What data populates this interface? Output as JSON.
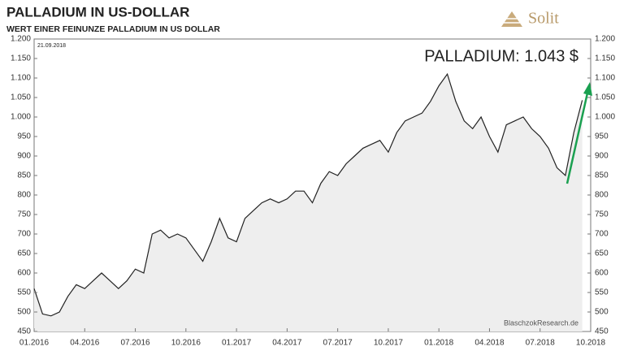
{
  "chart_data": {
    "type": "area",
    "title": "PALLADIUM  IN  US-DOLLAR",
    "subtitle": "WERT EINER FEINUNZE PALLADIUM IN US DOLLAR",
    "logo": "Solit",
    "date_note": "21.09.2018",
    "annotation": "PALLADIUM: 1.043 $",
    "source": "BlaschzokResearch.de",
    "color": "#222222",
    "fill": "#eeeeee",
    "categories": [
      "01.2016",
      null,
      null,
      null,
      null,
      null,
      "04.2016",
      null,
      null,
      null,
      null,
      null,
      "07.2016",
      null,
      null,
      null,
      null,
      null,
      "10.2016",
      null,
      null,
      null,
      null,
      null,
      "01.2017",
      null,
      null,
      null,
      null,
      null,
      "04.2017",
      null,
      null,
      null,
      null,
      null,
      "07.2017",
      null,
      null,
      null,
      null,
      null,
      "10.2017",
      null,
      null,
      null,
      null,
      null,
      "01.2018",
      null,
      null,
      null,
      null,
      null,
      "04.2018",
      null,
      null,
      null,
      null,
      null,
      "07.2018",
      null,
      null,
      null,
      null,
      null,
      "10.2018"
    ],
    "values": [
      560,
      495,
      490,
      500,
      540,
      570,
      560,
      580,
      600,
      580,
      560,
      580,
      610,
      600,
      700,
      710,
      690,
      700,
      690,
      660,
      630,
      680,
      740,
      690,
      680,
      740,
      760,
      780,
      790,
      780,
      790,
      810,
      810,
      780,
      830,
      860,
      850,
      880,
      900,
      920,
      930,
      940,
      910,
      960,
      990,
      1000,
      1010,
      1040,
      1080,
      1110,
      1040,
      990,
      970,
      1000,
      950,
      910,
      980,
      990,
      1000,
      970,
      950,
      920,
      870,
      850,
      960,
      1043,
      null
    ],
    "ylim": [
      450,
      1200
    ],
    "yticks": [
      450,
      500,
      550,
      600,
      650,
      700,
      750,
      800,
      850,
      900,
      950,
      {
        "value": 1000,
        "label": "1.000"
      },
      {
        "value": 1050,
        "label": "1.050"
      },
      {
        "value": 1100,
        "label": "1.100"
      },
      {
        "value": 1150,
        "label": "1.150"
      },
      {
        "value": 1200,
        "label": "1.200"
      }
    ],
    "y2lim": [
      450,
      1200
    ],
    "y2ticks": [
      450,
      500,
      550,
      600,
      650,
      700,
      750,
      800,
      850,
      900,
      950,
      {
        "value": 1000,
        "label": "1.000"
      },
      {
        "value": 1050,
        "label": "1.050"
      },
      {
        "value": 1100,
        "label": "1.100"
      },
      {
        "value": 1150,
        "label": "1.150"
      },
      {
        "value": 1200,
        "label": "1.200"
      }
    ]
  }
}
